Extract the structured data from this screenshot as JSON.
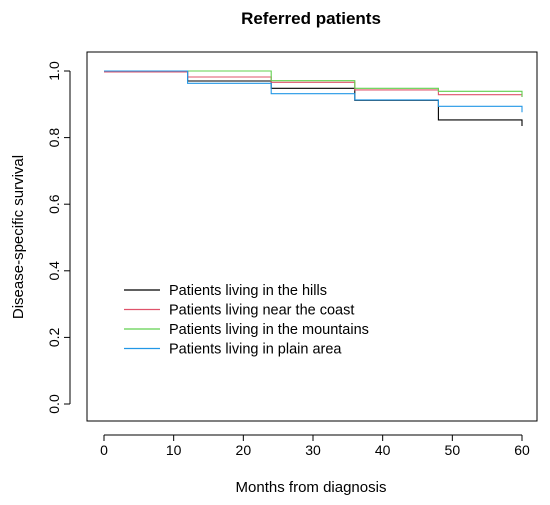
{
  "chart_data": {
    "type": "line",
    "step": true,
    "title": "Referred patients",
    "xlabel": "Months from diagnosis",
    "ylabel": "Disease-specific survival",
    "xlim": [
      0,
      60
    ],
    "ylim": [
      0,
      1
    ],
    "xticks": [
      0,
      10,
      20,
      30,
      40,
      50,
      60
    ],
    "yticks": [
      0.0,
      0.2,
      0.4,
      0.6,
      0.8,
      1.0
    ],
    "xtick_labels": [
      "0",
      "10",
      "20",
      "30",
      "40",
      "50",
      "60"
    ],
    "ytick_labels": [
      "0.0",
      "0.2",
      "0.4",
      "0.6",
      "0.8",
      "1.0"
    ],
    "grid": false,
    "legend_position": "bottom-left",
    "series": [
      {
        "name": "Patients living in the hills",
        "color": "#000000",
        "points": [
          [
            0,
            1.0
          ],
          [
            12,
            1.0
          ],
          [
            12,
            0.97
          ],
          [
            24,
            0.97
          ],
          [
            24,
            0.948
          ],
          [
            36,
            0.948
          ],
          [
            36,
            0.912
          ],
          [
            48,
            0.912
          ],
          [
            48,
            0.853
          ],
          [
            60,
            0.853
          ],
          [
            60,
            0.835
          ]
        ]
      },
      {
        "name": "Patients living  near the coast",
        "color": "#df536b",
        "points": [
          [
            0,
            0.997
          ],
          [
            12,
            0.997
          ],
          [
            12,
            0.982
          ],
          [
            24,
            0.982
          ],
          [
            24,
            0.966
          ],
          [
            36,
            0.966
          ],
          [
            36,
            0.943
          ],
          [
            48,
            0.943
          ],
          [
            48,
            0.929
          ],
          [
            60,
            0.929
          ],
          [
            60,
            0.922
          ]
        ]
      },
      {
        "name": "Patients living in the mountains",
        "color": "#61d04f",
        "points": [
          [
            0,
            1.0
          ],
          [
            24,
            1.0
          ],
          [
            24,
            0.971
          ],
          [
            36,
            0.971
          ],
          [
            36,
            0.948
          ],
          [
            48,
            0.948
          ],
          [
            48,
            0.939
          ],
          [
            60,
            0.939
          ],
          [
            60,
            0.922
          ]
        ]
      },
      {
        "name": "Patients living in plain area",
        "color": "#2297e6",
        "points": [
          [
            0,
            1.0
          ],
          [
            12,
            1.0
          ],
          [
            12,
            0.963
          ],
          [
            24,
            0.963
          ],
          [
            24,
            0.932
          ],
          [
            36,
            0.932
          ],
          [
            36,
            0.913
          ],
          [
            48,
            0.913
          ],
          [
            48,
            0.894
          ],
          [
            60,
            0.894
          ],
          [
            60,
            0.876
          ]
        ]
      }
    ]
  }
}
